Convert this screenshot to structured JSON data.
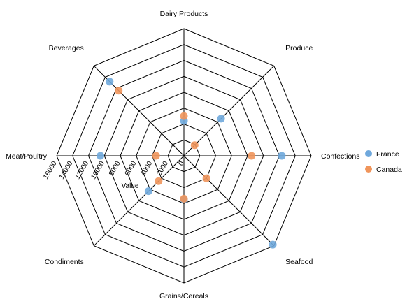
{
  "chart_data": {
    "type": "radar",
    "categories": [
      "Dairy Products",
      "Produce",
      "Confections",
      "Seafood",
      "Grains/Cereals",
      "Condiments",
      "Meat/Poultry",
      "Beverages"
    ],
    "series": [
      {
        "name": "France",
        "color": "#6fa8dc",
        "values": [
          4400,
          6600,
          12300,
          15800,
          5500,
          6300,
          10500,
          13200
        ]
      },
      {
        "name": "Canada",
        "color": "#f0955b",
        "values": [
          5000,
          1900,
          8500,
          4000,
          5400,
          4500,
          3500,
          11600
        ]
      }
    ],
    "radial_axis": {
      "title": "Value",
      "min": 0,
      "max": 16000,
      "ticks": [
        "0",
        "2000",
        "4000",
        "6000",
        "8000",
        "10000",
        "12000",
        "14000",
        "16000"
      ]
    },
    "legend_position": "right",
    "grid": true
  }
}
